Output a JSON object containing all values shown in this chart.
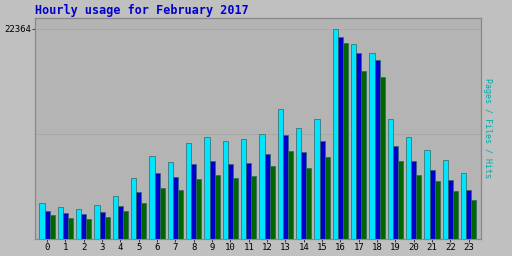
{
  "title": "Hourly usage for February 2017",
  "ymax": 22364,
  "ytick_val": 22364,
  "hours": [
    0,
    1,
    2,
    3,
    4,
    5,
    6,
    7,
    8,
    9,
    10,
    11,
    12,
    13,
    14,
    15,
    16,
    17,
    18,
    19,
    20,
    21,
    22,
    23
  ],
  "hits": [
    3800,
    3400,
    3200,
    3600,
    4600,
    6500,
    8800,
    8200,
    10200,
    10800,
    10400,
    10600,
    11200,
    13800,
    11800,
    12800,
    22364,
    20800,
    19800,
    12800,
    10800,
    9400,
    8400,
    7000
  ],
  "files": [
    3000,
    2700,
    2600,
    2800,
    3500,
    5000,
    7000,
    6600,
    8000,
    8300,
    8000,
    8100,
    9000,
    11000,
    9200,
    10400,
    21500,
    19800,
    19000,
    9900,
    8300,
    7300,
    6300,
    5200
  ],
  "pages": [
    2500,
    2200,
    2100,
    2300,
    3000,
    3800,
    5400,
    5200,
    6400,
    6800,
    6500,
    6700,
    7700,
    9300,
    7500,
    8700,
    20900,
    17900,
    17200,
    8300,
    6800,
    6100,
    5100,
    4100
  ],
  "color_hits": "#00e5ff",
  "color_files": "#0000cc",
  "color_pages": "#006600",
  "bar_edge_color": "#336666",
  "bg_color": "#c0c0c0",
  "plot_bg": "#b4b4b4",
  "title_color": "#0000cc",
  "bar_width": 0.28,
  "grid_color": "#a8a8a8",
  "ylabel_text": "Pages / Files / Hits",
  "ylabel_color_pages": "#008800",
  "ylabel_color_files": "#0000dd",
  "ylabel_color_hits": "#00cccc"
}
